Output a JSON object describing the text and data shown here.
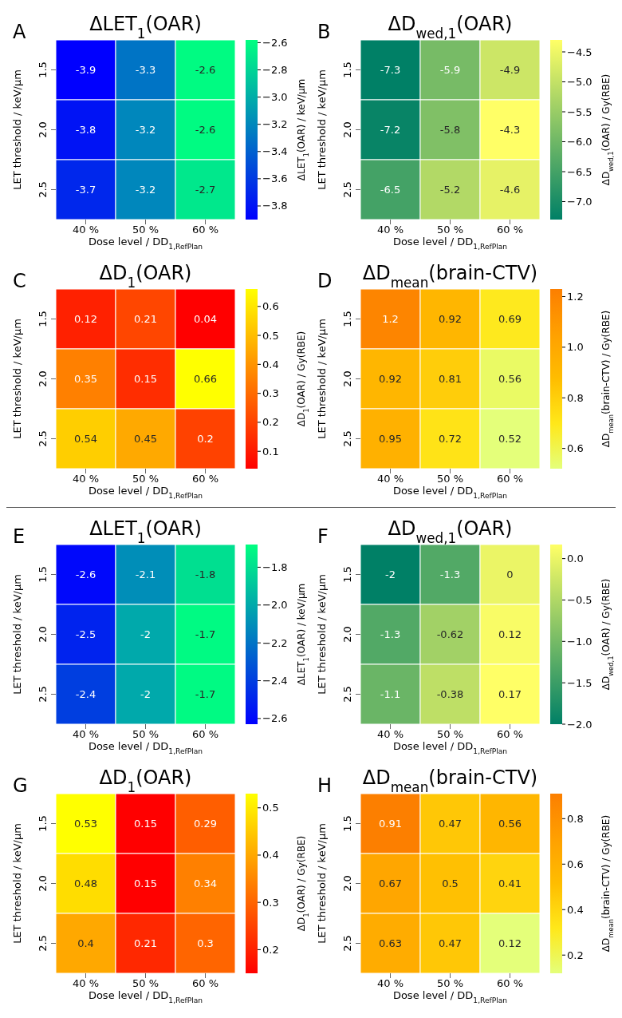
{
  "chart_data": [
    {
      "type": "heatmap",
      "title": "ΔLET$_{1}$(OAR)",
      "annotations": [
        "A"
      ],
      "xlabel": "Dose level / DD$_{1,RefPlan}$",
      "ylabel": "LET threshold / keV/μm",
      "clabel": "ΔLET$_{1}$(OAR) / keV/μm",
      "categories": [
        "40 %",
        "50 %",
        "60 %"
      ],
      "y_categories": [
        "1.5",
        "2.0",
        "2.5"
      ],
      "cells": [
        [
          -3.9,
          -3.3,
          -2.6
        ],
        [
          -3.8,
          -3.2,
          -2.6
        ],
        [
          -3.7,
          -3.2,
          -2.7
        ]
      ],
      "data_labels": true,
      "clim": [
        -3.9,
        -2.58
      ],
      "cticks": [
        {
          "value": -3.8,
          "label": "−3.8"
        },
        {
          "value": -3.6,
          "label": "−3.6"
        },
        {
          "value": -3.4,
          "label": "−3.4"
        },
        {
          "value": -3.2,
          "label": "−3.2"
        },
        {
          "value": -3.0,
          "label": "−3.0"
        },
        {
          "value": -2.8,
          "label": "−2.8"
        },
        {
          "value": -2.6,
          "label": "−2.6"
        }
      ],
      "colors": [
        "#0000ff",
        "#00ff80"
      ]
    },
    {
      "type": "heatmap",
      "title": "ΔD$_{wed,1}$(OAR)",
      "annotations": [
        "B"
      ],
      "xlabel": "Dose level / DD$_{1,RefPlan}$",
      "ylabel": "LET threshold / keV/μm",
      "clabel": "ΔD$_{wed,1}$(OAR) / Gy(RBE)",
      "categories": [
        "40 %",
        "50 %",
        "60 %"
      ],
      "y_categories": [
        "1.5",
        "2.0",
        "2.5"
      ],
      "cells": [
        [
          -7.3,
          -5.9,
          -4.9
        ],
        [
          -7.2,
          -5.8,
          -4.3
        ],
        [
          -6.5,
          -5.2,
          -4.6
        ]
      ],
      "data_labels": true,
      "clim": [
        -7.3,
        -4.3
      ],
      "cticks": [
        {
          "value": -7.0,
          "label": "−7.0"
        },
        {
          "value": -6.5,
          "label": "−6.5"
        },
        {
          "value": -6.0,
          "label": "−6.0"
        },
        {
          "value": -5.5,
          "label": "−5.5"
        },
        {
          "value": -5.0,
          "label": "−5.0"
        },
        {
          "value": -4.5,
          "label": "−4.5"
        }
      ],
      "colors": [
        "#008066",
        "#ffff66"
      ]
    },
    {
      "type": "heatmap",
      "title": "ΔD$_{1}$(OAR)",
      "annotations": [
        "C"
      ],
      "xlabel": "Dose level / DD$_{1,RefPlan}$",
      "ylabel": "LET threshold / keV/μm",
      "clabel": "ΔD$_{1}$(OAR) / Gy(RBE)",
      "categories": [
        "40 %",
        "50 %",
        "60 %"
      ],
      "y_categories": [
        "1.5",
        "2.0",
        "2.5"
      ],
      "cells": [
        [
          0.12,
          0.21,
          0.04
        ],
        [
          0.35,
          0.15,
          0.66
        ],
        [
          0.54,
          0.45,
          0.2
        ]
      ],
      "data_labels": true,
      "clim": [
        0.04,
        0.66
      ],
      "cticks": [
        0.1,
        0.2,
        0.3,
        0.4,
        0.5,
        0.6
      ],
      "colors": [
        "#ff0000",
        "#ffff00"
      ]
    },
    {
      "type": "heatmap",
      "title": "ΔD$_{mean}$(brain-CTV)",
      "annotations": [
        "D"
      ],
      "xlabel": "Dose level / DD$_{1,RefPlan}$",
      "ylabel": "LET threshold / keV/μm",
      "clabel": "ΔD$_{mean}$(brain-CTV) / Gy(RBE)",
      "categories": [
        "40 %",
        "50 %",
        "60 %"
      ],
      "y_categories": [
        "1.5",
        "2.0",
        "2.5"
      ],
      "cells": [
        [
          1.2,
          0.92,
          0.69
        ],
        [
          0.92,
          0.81,
          0.56
        ],
        [
          0.95,
          0.72,
          0.52
        ]
      ],
      "data_labels": true,
      "clim": [
        0.52,
        1.23
      ],
      "cticks": [
        0.6,
        0.8,
        {
          "value": 1.0,
          "label": "1.0"
        },
        1.2
      ],
      "colors": [
        "#e4ff7a",
        "#ffe81a",
        "#ffbd00",
        "#ffa000",
        "#fc7f00"
      ]
    },
    {
      "type": "heatmap",
      "title": "ΔLET$_{1}$(OAR)",
      "annotations": [
        "E"
      ],
      "xlabel": "Dose level / DD$_{1,RefPlan}$",
      "ylabel": "LET threshold / keV/μm",
      "clabel": "ΔLET$_{1}$(OAR) / keV/μm",
      "categories": [
        "40 %",
        "50 %",
        "60 %"
      ],
      "y_categories": [
        "1.5",
        "2.0",
        "2.5"
      ],
      "cells": [
        [
          -2.6,
          -2.1,
          -1.8
        ],
        [
          -2.5,
          -2,
          -1.7
        ],
        [
          -2.4,
          -2,
          -1.7
        ]
      ],
      "data_labels": true,
      "clim": [
        -2.63,
        -1.68
      ],
      "cticks": [
        {
          "value": -2.6,
          "label": "−2.6"
        },
        {
          "value": -2.4,
          "label": "−2.4"
        },
        {
          "value": -2.2,
          "label": "−2.2"
        },
        {
          "value": -2.0,
          "label": "−2.0"
        },
        {
          "value": -1.8,
          "label": "−1.8"
        }
      ],
      "colors": [
        "#0000ff",
        "#00ff80"
      ]
    },
    {
      "type": "heatmap",
      "title": "ΔD$_{wed,1}$(OAR)",
      "annotations": [
        "F"
      ],
      "xlabel": "Dose level / DD$_{1,RefPlan}$",
      "ylabel": "LET threshold / keV/μm",
      "clabel": "ΔD$_{wed,1}$(OAR) / Gy(RBE)",
      "categories": [
        "40 %",
        "50 %",
        "60 %"
      ],
      "y_categories": [
        "1.5",
        "2.0",
        "2.5"
      ],
      "cells": [
        [
          -2,
          -1.3,
          0
        ],
        [
          -1.3,
          -0.62,
          0.12
        ],
        [
          -1.1,
          -0.38,
          0.17
        ]
      ],
      "data_labels": true,
      "clim": [
        -2.0,
        0.17
      ],
      "cticks": [
        {
          "value": -2.0,
          "label": "−2.0"
        },
        {
          "value": -1.5,
          "label": "−1.5"
        },
        {
          "value": -1.0,
          "label": "−1.0"
        },
        {
          "value": -0.5,
          "label": "−0.5"
        },
        {
          "value": 0.0,
          "label": "0.0"
        }
      ],
      "colors": [
        "#008066",
        "#ffff66"
      ]
    },
    {
      "type": "heatmap",
      "title": "ΔD$_{1}$(OAR)",
      "annotations": [
        "G"
      ],
      "xlabel": "Dose level / DD$_{1,RefPlan}$",
      "ylabel": "LET threshold / keV/μm",
      "clabel": "ΔD$_{1}$(OAR) / Gy(RBE)",
      "categories": [
        "40 %",
        "50 %",
        "60 %"
      ],
      "y_categories": [
        "1.5",
        "2.0",
        "2.5"
      ],
      "cells": [
        [
          0.53,
          0.15,
          0.29
        ],
        [
          0.48,
          0.15,
          0.34
        ],
        [
          0.4,
          0.21,
          0.3
        ]
      ],
      "data_labels": true,
      "clim": [
        0.15,
        0.53
      ],
      "cticks": [
        0.2,
        0.3,
        0.4,
        0.5
      ],
      "colors": [
        "#ff0000",
        "#ffff00"
      ]
    },
    {
      "type": "heatmap",
      "title": "ΔD$_{mean}$(brain-CTV)",
      "annotations": [
        "H"
      ],
      "xlabel": "Dose level / DD$_{1,RefPlan}$",
      "ylabel": "LET threshold / keV/μm",
      "clabel": "ΔD$_{mean}$(brain-CTV) / Gy(RBE)",
      "categories": [
        "40 %",
        "50 %",
        "60 %"
      ],
      "y_categories": [
        "1.5",
        "2.0",
        "2.5"
      ],
      "cells": [
        [
          0.91,
          0.47,
          0.56
        ],
        [
          0.67,
          0.5,
          0.41
        ],
        [
          0.63,
          0.47,
          0.12
        ]
      ],
      "data_labels": true,
      "clim": [
        0.12,
        0.91
      ],
      "cticks": [
        0.2,
        0.4,
        0.6,
        0.8
      ],
      "colors": [
        "#e4ff7a",
        "#ffe81a",
        "#ffbd00",
        "#ffa000",
        "#fc7f00"
      ]
    }
  ]
}
